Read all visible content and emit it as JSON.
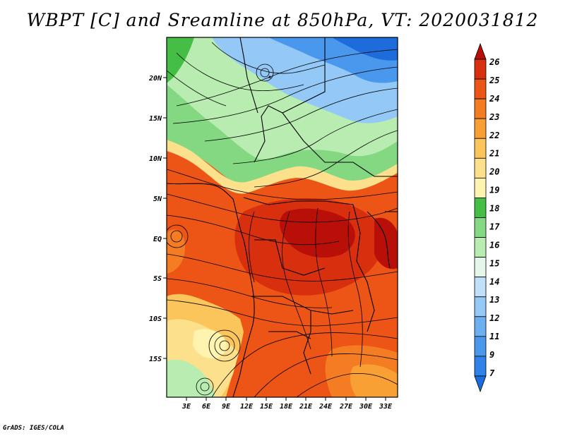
{
  "title": "WBPT [C] and Sreamline at 850hPa, VT: 2020031812",
  "credit": "GrADS: IGES/COLA",
  "map": {
    "lat_labels": [
      "20N",
      "15N",
      "10N",
      "5N",
      "EQ",
      "5S",
      "10S",
      "15S"
    ],
    "lon_labels": [
      "3E",
      "6E",
      "9E",
      "12E",
      "15E",
      "18E",
      "21E",
      "24E",
      "27E",
      "30E",
      "33E"
    ]
  },
  "colorbar": {
    "labels": [
      "7",
      "9",
      "11",
      "12",
      "13",
      "14",
      "15",
      "16",
      "17",
      "18",
      "19",
      "20",
      "21",
      "22",
      "23",
      "24",
      "25",
      "26"
    ],
    "colors": [
      "#1e6cdc",
      "#2f83e8",
      "#4a98ee",
      "#6db0f2",
      "#94c8f6",
      "#c0e0fa",
      "#e6f6ea",
      "#b8ecb0",
      "#84d882",
      "#45be45",
      "#fff3b0",
      "#fde08c",
      "#fbc55c",
      "#f9a034",
      "#f47c22",
      "#ec5516",
      "#d8300e",
      "#b81008"
    ]
  }
}
